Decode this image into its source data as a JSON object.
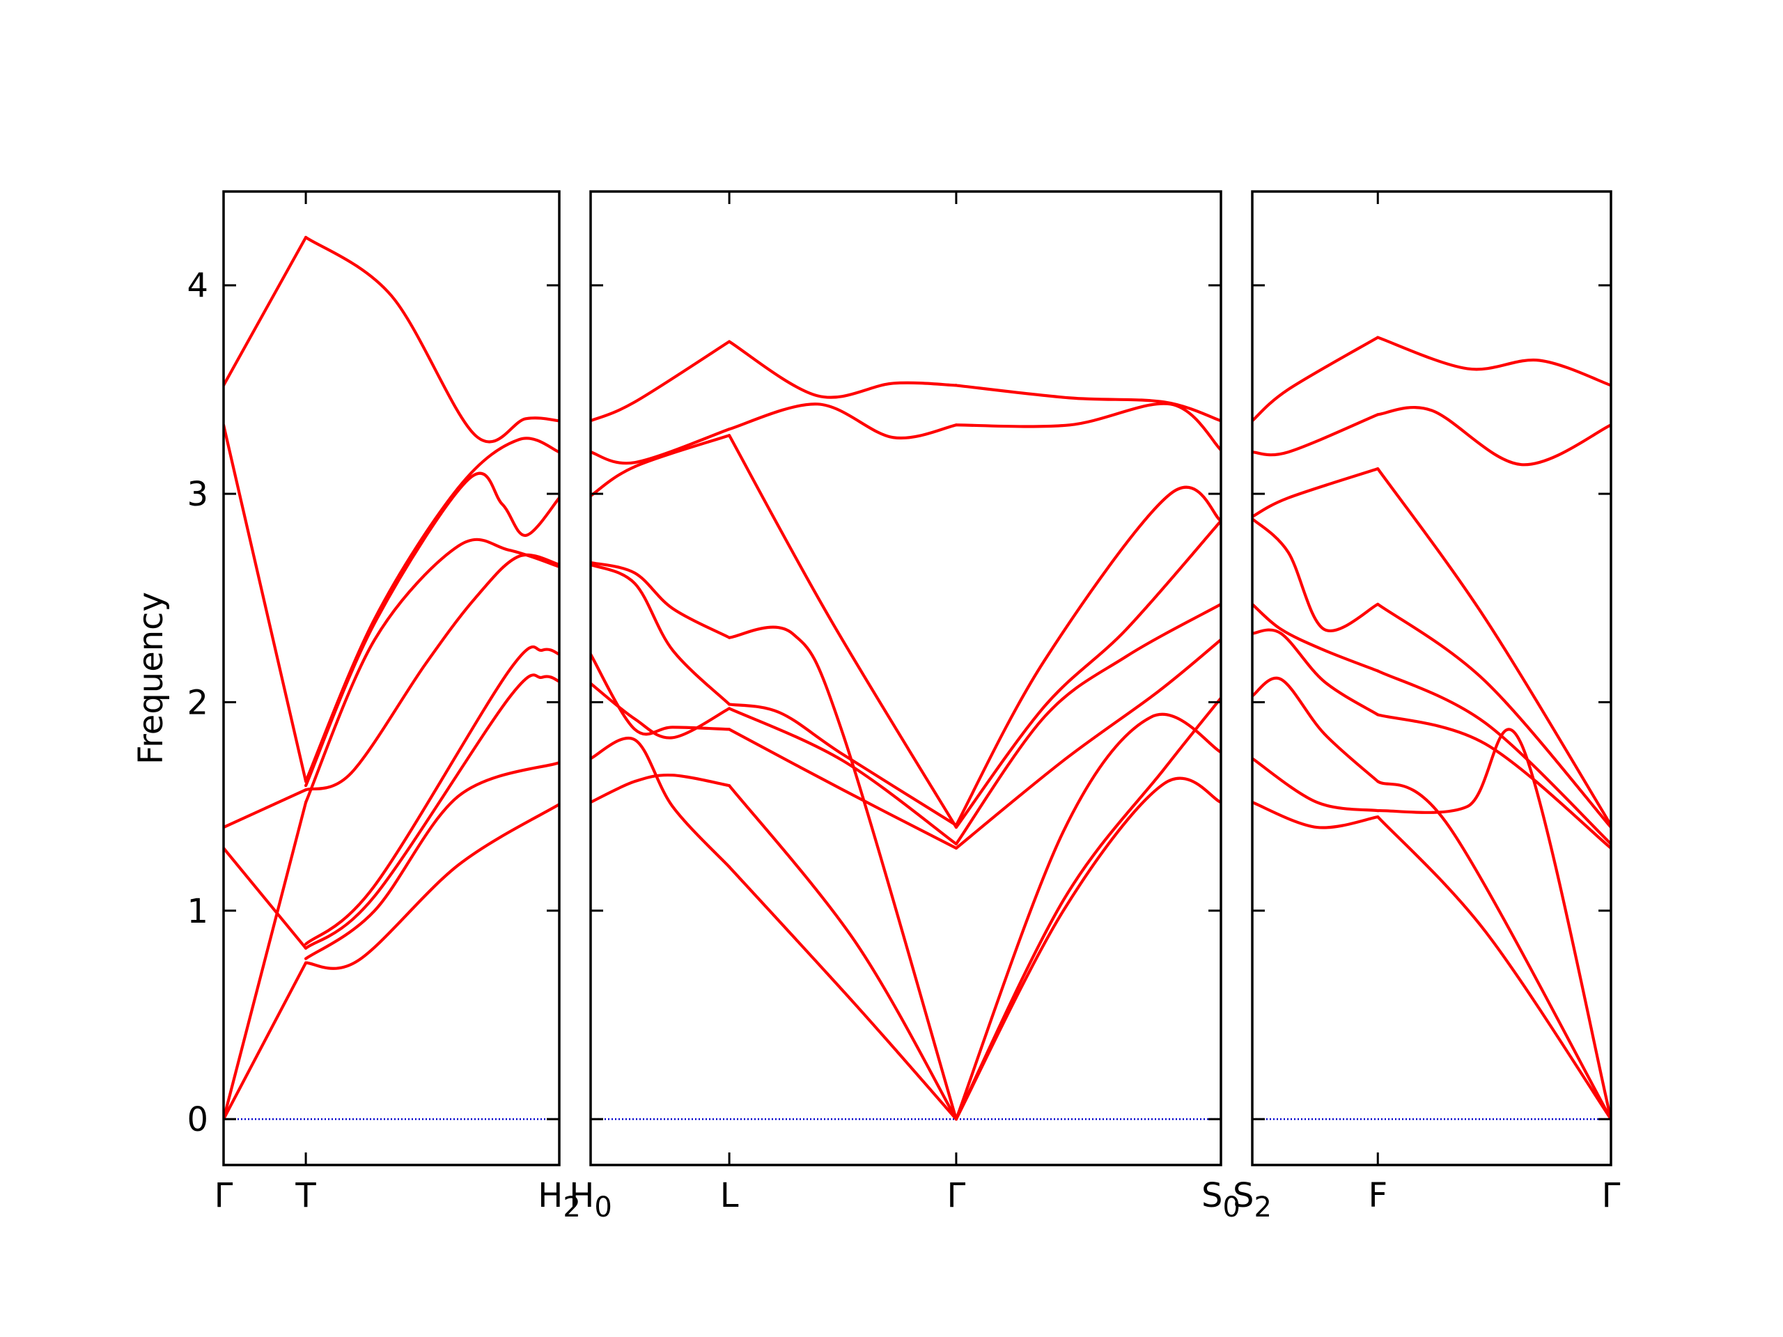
{
  "chart_data": {
    "type": "line",
    "title": "",
    "ylabel": "Frequency",
    "ylim": [
      -0.22,
      4.45
    ],
    "yticks": [
      0,
      1,
      2,
      3,
      4
    ],
    "line_color": "#ff0000",
    "zero_line_color": "#0000cc",
    "panels": [
      {
        "id": "panel-1",
        "xlim": [
          0,
          1
        ],
        "ticks": [
          {
            "pos": 0.0,
            "label": "Γ",
            "base": "Γ",
            "sub": ""
          },
          {
            "pos": 0.245,
            "label": "T",
            "base": "T",
            "sub": ""
          },
          {
            "pos": 1.0,
            "label": "H2",
            "base": "H",
            "sub": "2"
          }
        ],
        "series": [
          {
            "x": [
              0,
              0.245
            ],
            "y": [
              0,
              0.75
            ]
          },
          {
            "x": [
              0,
              0.245
            ],
            "y": [
              0,
              1.52
            ]
          },
          {
            "x": [
              0,
              0.245
            ],
            "y": [
              1.3,
              0.82
            ]
          },
          {
            "x": [
              0,
              0.245
            ],
            "y": [
              1.4,
              1.58
            ]
          },
          {
            "x": [
              0,
              0.245
            ],
            "y": [
              3.33,
              1.62
            ]
          },
          {
            "x": [
              0,
              0.245
            ],
            "y": [
              3.52,
              4.23
            ]
          },
          {
            "x": [
              0.245,
              0.4,
              0.7,
              1.0
            ],
            "y": [
              0.75,
              0.76,
              1.22,
              1.51
            ]
          },
          {
            "x": [
              0.245,
              0.45,
              0.7,
              1.0
            ],
            "y": [
              0.77,
              1.0,
              1.55,
              1.71
            ]
          },
          {
            "x": [
              0.245,
              0.45,
              0.85,
              0.95,
              1.0
            ],
            "y": [
              0.82,
              1.07,
              2.02,
              2.12,
              2.1
            ]
          },
          {
            "x": [
              0.245,
              0.45,
              0.85,
              0.95,
              1.0
            ],
            "y": [
              0.84,
              1.12,
              2.15,
              2.25,
              2.23
            ]
          },
          {
            "x": [
              0.245,
              0.45,
              0.7,
              0.85,
              1.0
            ],
            "y": [
              1.52,
              2.3,
              2.75,
              2.73,
              2.65
            ]
          },
          {
            "x": [
              0.245,
              0.38,
              0.6,
              0.75,
              0.88,
              1.0
            ],
            "y": [
              1.58,
              1.66,
              2.18,
              2.5,
              2.7,
              2.66
            ]
          },
          {
            "x": [
              0.245,
              0.45,
              0.73,
              0.83,
              0.9,
              1.0
            ],
            "y": [
              1.6,
              2.38,
              3.07,
              2.95,
              2.8,
              2.98
            ]
          },
          {
            "x": [
              0.245,
              0.45,
              0.7,
              0.88,
              1.0
            ],
            "y": [
              1.62,
              2.4,
              3.03,
              3.26,
              3.2
            ]
          },
          {
            "x": [
              0.245,
              0.5,
              0.75,
              0.9,
              1.0
            ],
            "y": [
              4.23,
              3.95,
              3.28,
              3.36,
              3.35
            ]
          }
        ]
      },
      {
        "id": "panel-2",
        "xlim": [
          0,
          1
        ],
        "ticks": [
          {
            "pos": 0.0,
            "label": "H0",
            "base": "H",
            "sub": "0"
          },
          {
            "pos": 0.22,
            "label": "L",
            "base": "L",
            "sub": ""
          },
          {
            "pos": 0.58,
            "label": "Γ",
            "base": "Γ",
            "sub": ""
          },
          {
            "pos": 1.0,
            "label": "S0",
            "base": "S",
            "sub": "0"
          }
        ],
        "series": [
          {
            "x": [
              0,
              0.07,
              0.13,
              0.22
            ],
            "y": [
              1.52,
              1.62,
              1.65,
              1.6
            ]
          },
          {
            "x": [
              0,
              0.07,
              0.13,
              0.22
            ],
            "y": [
              1.73,
              1.82,
              1.5,
              1.21
            ]
          },
          {
            "x": [
              0,
              0.07,
              0.13,
              0.22
            ],
            "y": [
              2.09,
              1.92,
              1.83,
              1.97
            ]
          },
          {
            "x": [
              0,
              0.07,
              0.13,
              0.22
            ],
            "y": [
              2.23,
              1.87,
              1.88,
              1.87
            ]
          },
          {
            "x": [
              0,
              0.07,
              0.13,
              0.22
            ],
            "y": [
              2.66,
              2.57,
              2.25,
              1.99
            ]
          },
          {
            "x": [
              0,
              0.07,
              0.13,
              0.22
            ],
            "y": [
              2.67,
              2.62,
              2.45,
              2.31
            ]
          },
          {
            "x": [
              0,
              0.07,
              0.22
            ],
            "y": [
              2.99,
              3.13,
              3.28
            ]
          },
          {
            "x": [
              0,
              0.07,
              0.22
            ],
            "y": [
              3.2,
              3.15,
              3.31
            ]
          },
          {
            "x": [
              0,
              0.07,
              0.22
            ],
            "y": [
              3.35,
              3.44,
              3.73
            ]
          },
          {
            "x": [
              0.22,
              0.42,
              0.58
            ],
            "y": [
              1.21,
              0.55,
              0
            ]
          },
          {
            "x": [
              0.22,
              0.42,
              0.58
            ],
            "y": [
              1.6,
              0.85,
              0
            ]
          },
          {
            "x": [
              0.22,
              0.4,
              0.58
            ],
            "y": [
              1.87,
              1.58,
              1.3
            ]
          },
          {
            "x": [
              0.22,
              0.4,
              0.58
            ],
            "y": [
              1.97,
              1.72,
              1.32
            ]
          },
          {
            "x": [
              0.22,
              0.3,
              0.4,
              0.58
            ],
            "y": [
              1.99,
              1.95,
              1.75,
              1.41
            ]
          },
          {
            "x": [
              0.22,
              0.32,
              0.4,
              0.58
            ],
            "y": [
              2.31,
              2.33,
              1.85,
              0
            ]
          },
          {
            "x": [
              0.22,
              0.38,
              0.58
            ],
            "y": [
              3.28,
              2.4,
              1.4
            ]
          },
          {
            "x": [
              0.22,
              0.36,
              0.48,
              0.58
            ],
            "y": [
              3.31,
              3.43,
              3.27,
              3.33
            ]
          },
          {
            "x": [
              0.22,
              0.36,
              0.48,
              0.58
            ],
            "y": [
              3.73,
              3.47,
              3.53,
              3.52
            ]
          },
          {
            "x": [
              0.58,
              0.75,
              0.91,
              1.0
            ],
            "y": [
              0,
              1.0,
              1.61,
              1.52
            ]
          },
          {
            "x": [
              0.58,
              0.75,
              0.91,
              1.0
            ],
            "y": [
              0,
              1.05,
              1.68,
              2.02
            ]
          },
          {
            "x": [
              0.58,
              0.75,
              0.89,
              1.0
            ],
            "y": [
              0,
              1.38,
              1.93,
              1.76
            ]
          },
          {
            "x": [
              0.58,
              0.75,
              0.9,
              1.0
            ],
            "y": [
              1.3,
              1.72,
              2.05,
              2.3
            ]
          },
          {
            "x": [
              0.58,
              0.72,
              0.85,
              1.0
            ],
            "y": [
              1.32,
              1.93,
              2.22,
              2.47
            ]
          },
          {
            "x": [
              0.58,
              0.72,
              0.85,
              1.0
            ],
            "y": [
              1.4,
              1.98,
              2.35,
              2.87
            ]
          },
          {
            "x": [
              0.58,
              0.72,
              0.92,
              1.0
            ],
            "y": [
              1.41,
              2.2,
              3.0,
              2.87
            ]
          },
          {
            "x": [
              0.58,
              0.76,
              0.92,
              1.0
            ],
            "y": [
              3.33,
              3.33,
              3.43,
              3.21
            ]
          },
          {
            "x": [
              0.58,
              0.76,
              0.91,
              1.0
            ],
            "y": [
              3.52,
              3.46,
              3.44,
              3.35
            ]
          }
        ]
      },
      {
        "id": "panel-3",
        "xlim": [
          0,
          1
        ],
        "ticks": [
          {
            "pos": 0.0,
            "label": "S2",
            "base": "S",
            "sub": "2"
          },
          {
            "pos": 0.35,
            "label": "F",
            "base": "F",
            "sub": ""
          },
          {
            "pos": 1.0,
            "label": "Γ",
            "base": "Γ",
            "sub": ""
          }
        ],
        "series": [
          {
            "x": [
              0,
              0.18,
              0.35
            ],
            "y": [
              1.52,
              1.4,
              1.45
            ]
          },
          {
            "x": [
              0,
              0.18,
              0.35
            ],
            "y": [
              1.73,
              1.52,
              1.48
            ]
          },
          {
            "x": [
              0,
              0.08,
              0.2,
              0.35
            ],
            "y": [
              2.03,
              2.11,
              1.85,
              1.62
            ]
          },
          {
            "x": [
              0,
              0.08,
              0.2,
              0.35
            ],
            "y": [
              2.33,
              2.33,
              2.1,
              1.94
            ]
          },
          {
            "x": [
              0,
              0.08,
              0.2,
              0.35
            ],
            "y": [
              2.47,
              2.35,
              2.25,
              2.15
            ]
          },
          {
            "x": [
              0,
              0.1,
              0.2,
              0.35
            ],
            "y": [
              2.88,
              2.72,
              2.35,
              2.47
            ]
          },
          {
            "x": [
              0,
              0.1,
              0.35
            ],
            "y": [
              2.89,
              2.98,
              3.12
            ]
          },
          {
            "x": [
              0,
              0.1,
              0.35
            ],
            "y": [
              3.2,
              3.2,
              3.38
            ]
          },
          {
            "x": [
              0,
              0.1,
              0.35
            ],
            "y": [
              3.35,
              3.5,
              3.75
            ]
          },
          {
            "x": [
              0.35,
              0.65,
              1.0
            ],
            "y": [
              1.45,
              0.9,
              0
            ]
          },
          {
            "x": [
              0.35,
              0.55,
              1.0
            ],
            "y": [
              1.62,
              1.4,
              0
            ]
          },
          {
            "x": [
              0.35,
              0.6,
              0.75,
              1.0
            ],
            "y": [
              1.48,
              1.5,
              1.8,
              0
            ]
          },
          {
            "x": [
              0.35,
              0.65,
              1.0
            ],
            "y": [
              1.94,
              1.8,
              1.3
            ]
          },
          {
            "x": [
              0.35,
              0.65,
              1.0
            ],
            "y": [
              2.15,
              1.9,
              1.32
            ]
          },
          {
            "x": [
              0.35,
              0.65,
              1.0
            ],
            "y": [
              2.47,
              2.1,
              1.4
            ]
          },
          {
            "x": [
              0.35,
              0.65,
              1.0
            ],
            "y": [
              3.12,
              2.4,
              1.41
            ]
          },
          {
            "x": [
              0.35,
              0.5,
              0.75,
              1.0
            ],
            "y": [
              3.38,
              3.4,
              3.14,
              3.33
            ]
          },
          {
            "x": [
              0.35,
              0.6,
              0.8,
              1.0
            ],
            "y": [
              3.75,
              3.6,
              3.64,
              3.52
            ]
          }
        ]
      }
    ]
  }
}
